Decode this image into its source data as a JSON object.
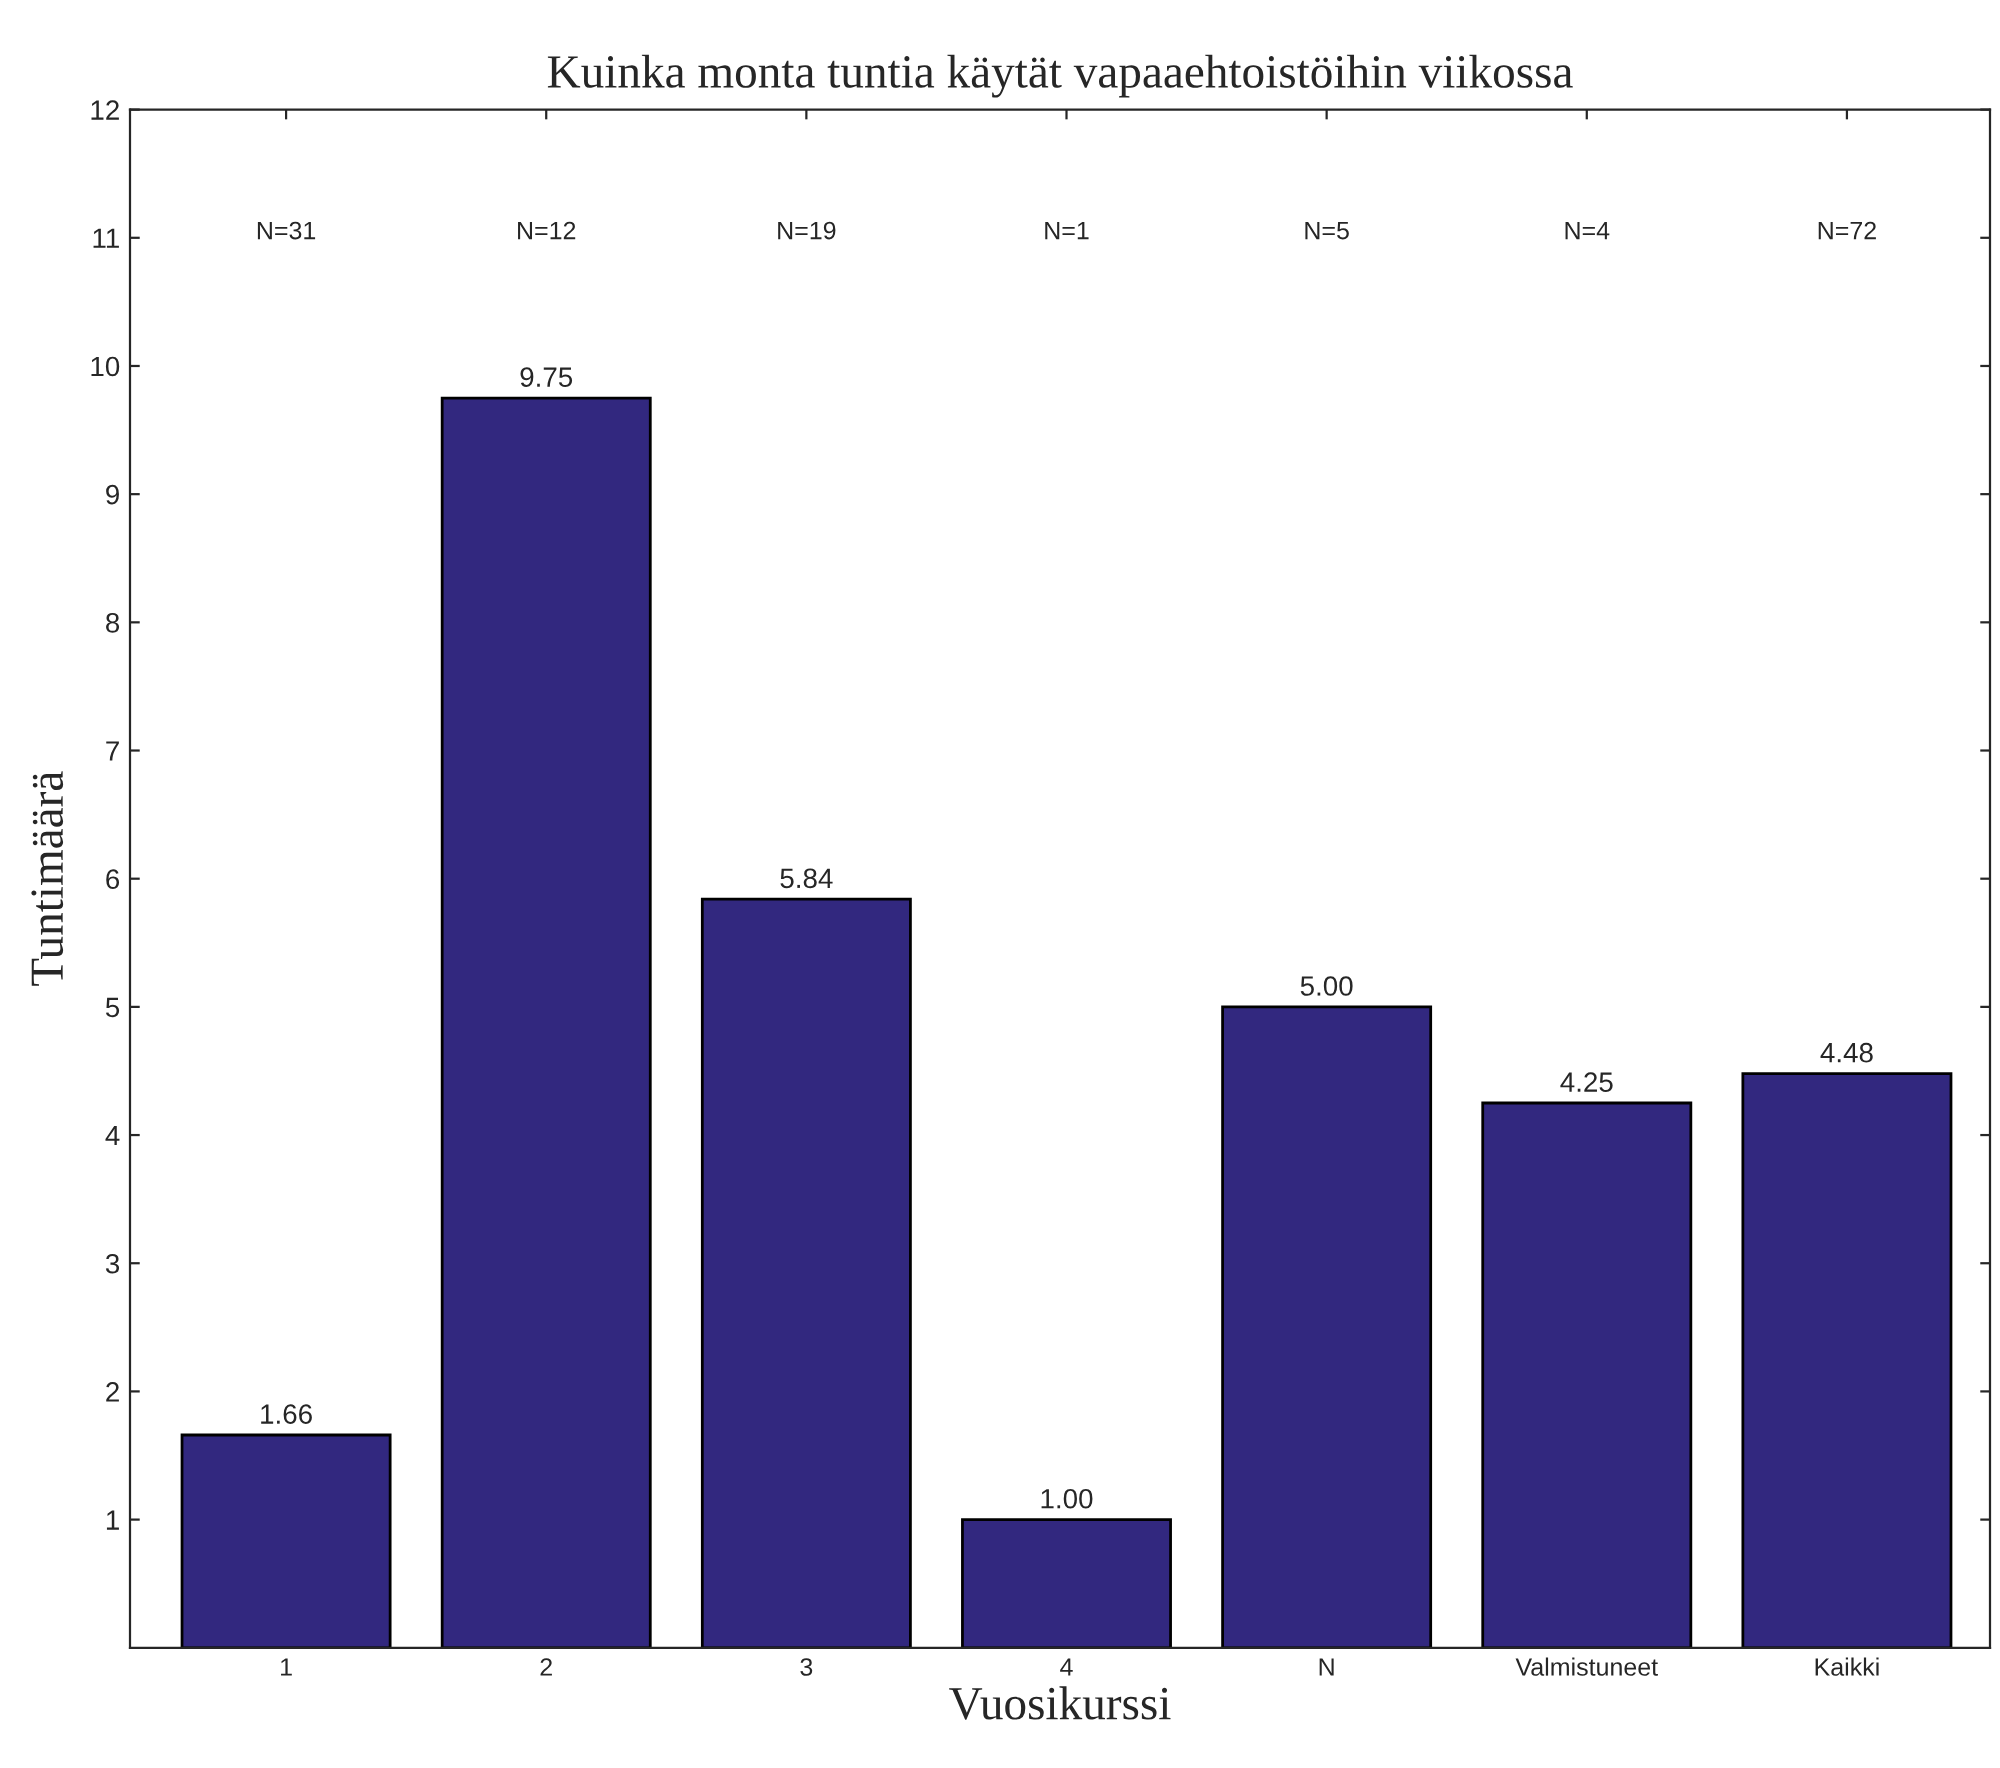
{
  "chart_data": {
    "type": "bar",
    "title": "Kuinka monta tuntia käytät vapaaehtoistöihin viikossa",
    "xlabel": "Vuosikurssi",
    "ylabel": "Tuntimäärä",
    "categories": [
      "1",
      "2",
      "3",
      "4",
      "N",
      "Valmistuneet",
      "Kaikki"
    ],
    "values": [
      1.66,
      9.75,
      5.84,
      1.0,
      5.0,
      4.25,
      4.48
    ],
    "value_labels": [
      "1.66",
      "9.75",
      "5.84",
      "1.00",
      "5.00",
      "4.25",
      "4.48"
    ],
    "color": "#32287f",
    "ylim": [
      0,
      12
    ],
    "yticks": [
      1,
      2,
      3,
      4,
      5,
      6,
      7,
      8,
      9,
      10,
      11,
      12
    ],
    "annotations": [
      "N=31",
      "N=12",
      "N=19",
      "N=1",
      "N=5",
      "N=4",
      "N=72"
    ],
    "grid": false,
    "legend": false
  }
}
